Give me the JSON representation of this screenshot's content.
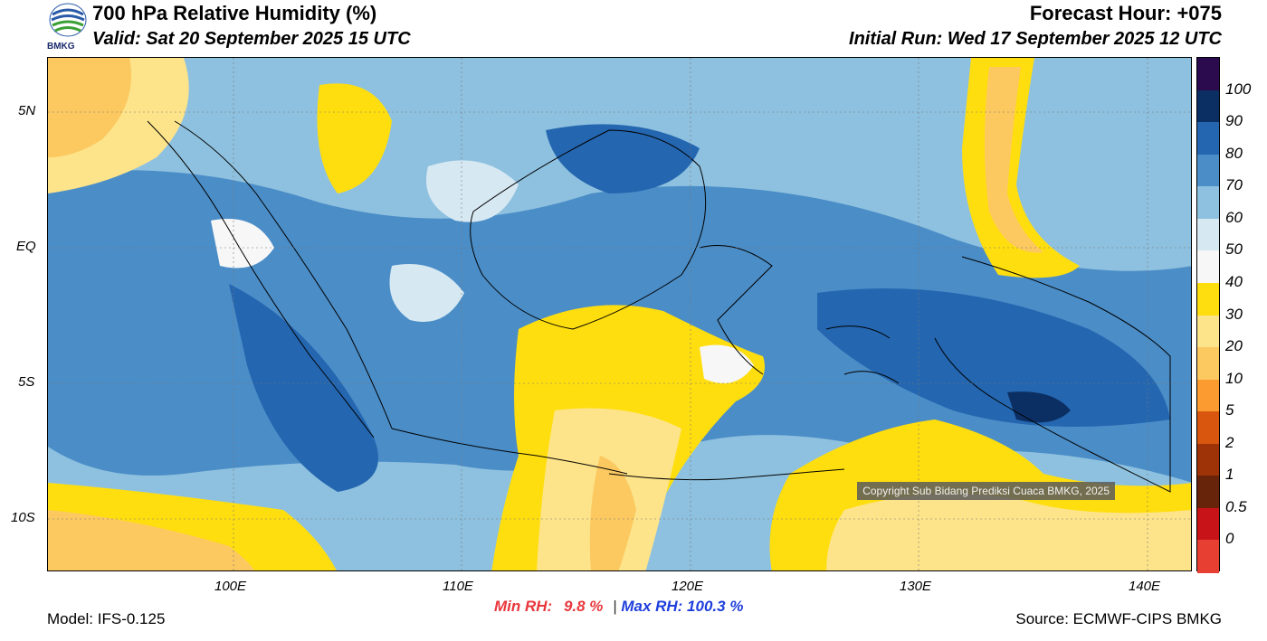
{
  "header": {
    "title": "700 hPa Relative Humidity (%)",
    "valid": "Valid: Sat 20 September 2025 15 UTC",
    "forecast_hour": "Forecast Hour: +075",
    "initial_run": "Initial Run: Wed 17 September 2025 12 UTC",
    "logo_text": "BMKG"
  },
  "axes": {
    "lat_labels": [
      "5N",
      "EQ",
      "5S",
      "10S"
    ],
    "lon_labels": [
      "100E",
      "110E",
      "120E",
      "130E",
      "140E"
    ]
  },
  "colorbar": {
    "labels": [
      "100",
      "90",
      "80",
      "70",
      "60",
      "50",
      "40",
      "30",
      "20",
      "10",
      "5",
      "2",
      "1",
      "0.5",
      "0"
    ],
    "colors": [
      "#2b0a4e",
      "#0c2f63",
      "#2466b0",
      "#4b8dc7",
      "#8ec1df",
      "#d6e8f2",
      "#f7f7f7",
      "#ffde0f",
      "#fde48a",
      "#fcc860",
      "#fb9b30",
      "#d8560e",
      "#9f3308",
      "#67240a",
      "#c81418",
      "#e83f33"
    ]
  },
  "stats": {
    "min_label": "Min RH:",
    "min_value": "9.8 %",
    "separator": "|",
    "max_label": "Max RH: 100.3 %"
  },
  "footer": {
    "model": "Model: IFS-0.125",
    "source": "Source: ECMWF-CIPS BMKG",
    "copyright": "Copyright Sub Bidang Prediksi Cuaca BMKG, 2025"
  }
}
